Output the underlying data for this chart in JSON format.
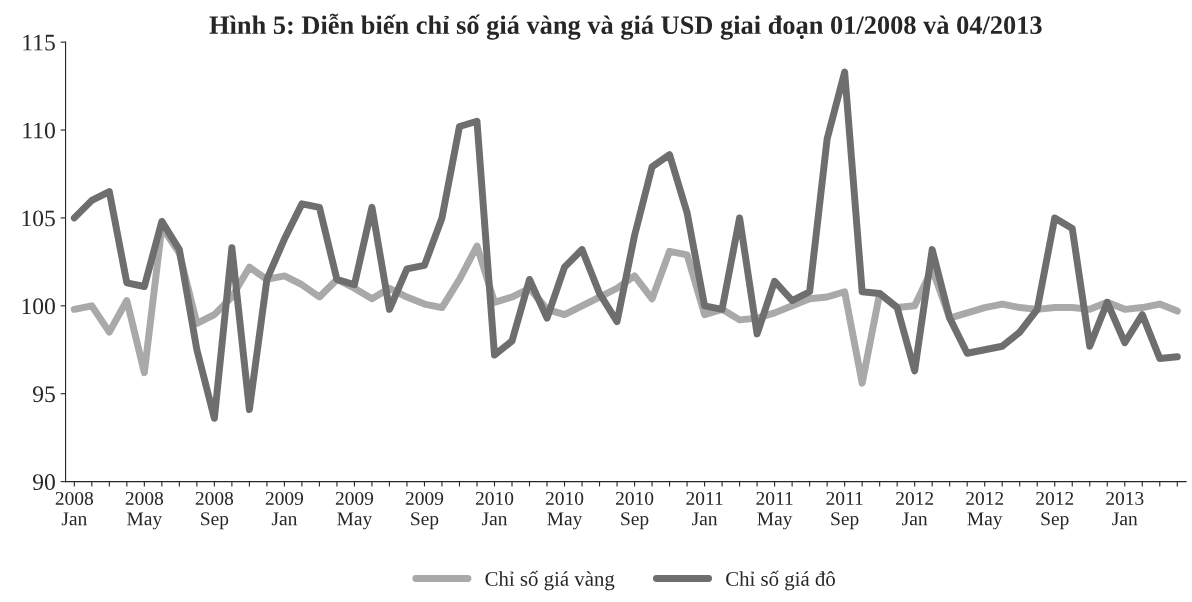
{
  "chart_data": {
    "type": "line",
    "title": "Hình 5: Diễn biến chỉ số giá vàng và giá USD giai đoạn 01/2008 và 04/2013",
    "categories": [
      "2008\nJan",
      null,
      null,
      null,
      "2008\nMay",
      null,
      null,
      null,
      "2008\nSep",
      null,
      null,
      null,
      "2009\nJan",
      null,
      null,
      null,
      "2009\nMay",
      null,
      null,
      null,
      "2009\nSep",
      null,
      null,
      null,
      "2010\nJan",
      null,
      null,
      null,
      "2010\nMay",
      null,
      null,
      null,
      "2010\nSep",
      null,
      null,
      null,
      "2011\nJan",
      null,
      null,
      null,
      "2011\nMay",
      null,
      null,
      null,
      "2011\nSep",
      null,
      null,
      null,
      "2012\nJan",
      null,
      null,
      null,
      "2012\nMay",
      null,
      null,
      null,
      "2012\nSep",
      null,
      null,
      null,
      "2013\nJan",
      null,
      null,
      null
    ],
    "series": [
      {
        "name": "Chỉ số giá vàng",
        "color": "#a9a9a9",
        "values": [
          99.8,
          100.0,
          98.5,
          100.3,
          96.2,
          104.5,
          103.0,
          99.0,
          99.5,
          100.5,
          102.2,
          101.5,
          101.7,
          101.2,
          100.5,
          101.5,
          101.0,
          100.4,
          101.0,
          100.5,
          100.1,
          99.9,
          101.5,
          103.4,
          100.2,
          100.5,
          101.0,
          99.8,
          99.5,
          100.0,
          100.5,
          101.0,
          101.7,
          100.4,
          103.1,
          102.9,
          99.5,
          99.8,
          99.2,
          99.3,
          99.6,
          100.0,
          100.4,
          100.5,
          100.8,
          95.6,
          100.7,
          99.9,
          100.0,
          102.1,
          99.3,
          99.6,
          99.9,
          100.1,
          99.9,
          99.8,
          99.9,
          99.9,
          99.8,
          100.2,
          99.8,
          99.9,
          100.1,
          99.7
        ]
      },
      {
        "name": "Chỉ số giá đô",
        "color": "#6e6e6e",
        "values": [
          105.0,
          106.0,
          106.5,
          101.3,
          101.1,
          104.8,
          103.2,
          97.5,
          93.6,
          103.3,
          94.1,
          101.5,
          103.8,
          105.8,
          105.6,
          101.5,
          101.2,
          105.6,
          99.8,
          102.1,
          102.3,
          105.0,
          110.2,
          110.5,
          97.2,
          98.0,
          101.5,
          99.3,
          102.2,
          103.2,
          100.7,
          99.1,
          104.0,
          107.9,
          108.6,
          105.3,
          100.0,
          99.8,
          105.0,
          98.4,
          101.4,
          100.3,
          100.8,
          109.5,
          113.3,
          100.8,
          100.7,
          99.9,
          96.3,
          103.2,
          99.3,
          97.3,
          97.5,
          97.7,
          98.5,
          99.8,
          105.0,
          104.4,
          97.7,
          100.2,
          97.9,
          99.5,
          97.0,
          97.1
        ]
      }
    ],
    "ylim": [
      90,
      115
    ],
    "yticks": [
      90,
      95,
      100,
      105,
      110,
      115
    ],
    "grid": false,
    "legend": "bottom",
    "marker": "none",
    "line_style": "solid"
  }
}
